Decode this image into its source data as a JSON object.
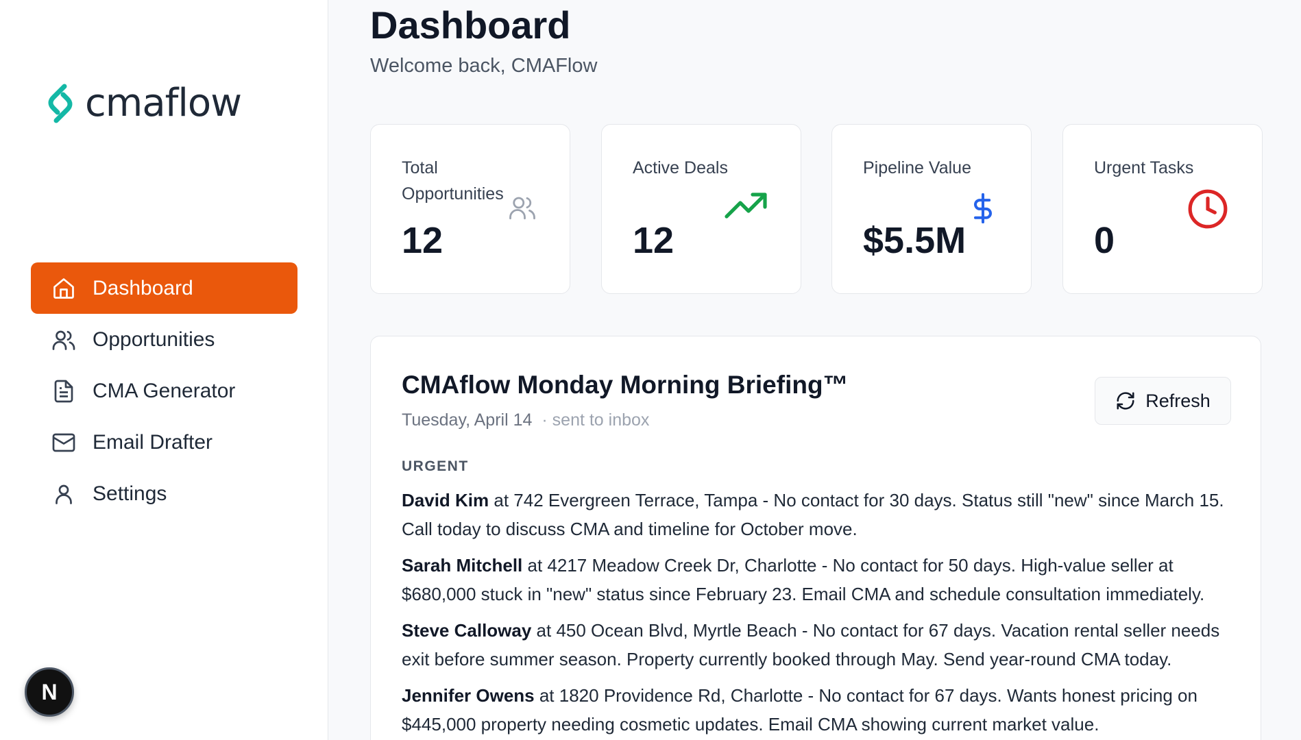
{
  "brand": {
    "name": "cmaflow",
    "color": "#14b8a6"
  },
  "sidebar": {
    "items": [
      {
        "label": "Dashboard",
        "icon": "home-icon",
        "active": true
      },
      {
        "label": "Opportunities",
        "icon": "users-icon",
        "active": false
      },
      {
        "label": "CMA Generator",
        "icon": "document-icon",
        "active": false
      },
      {
        "label": "Email Drafter",
        "icon": "mail-icon",
        "active": false
      },
      {
        "label": "Settings",
        "icon": "user-icon",
        "active": false
      }
    ],
    "badge": "N",
    "accent": "#ea580c"
  },
  "header": {
    "title": "Dashboard",
    "subtitle": "Welcome back, CMAFlow"
  },
  "stats": [
    {
      "label": "Total Opportunities",
      "value": "12",
      "icon": "users-icon",
      "color": "#9ca3af"
    },
    {
      "label": "Active Deals",
      "value": "12",
      "icon": "trending-up-icon",
      "color": "#16a34a"
    },
    {
      "label": "Pipeline Value",
      "value": "$5.5M",
      "icon": "dollar-icon",
      "color": "#2563eb"
    },
    {
      "label": "Urgent Tasks",
      "value": "0",
      "icon": "clock-icon",
      "color": "#dc2626"
    }
  ],
  "briefing": {
    "title": "CMAflow Monday Morning Briefing™",
    "date": "Tuesday, April 14",
    "status": "· sent to inbox",
    "refresh_label": "Refresh",
    "section": "URGENT",
    "items": [
      {
        "name": "David Kim",
        "text": " at 742 Evergreen Terrace, Tampa - No contact for 30 days. Status still \"new\" since March 15. Call today to discuss CMA and timeline for October move."
      },
      {
        "name": "Sarah Mitchell",
        "text": " at 4217 Meadow Creek Dr, Charlotte - No contact for 50 days. High-value seller at $680,000 stuck in \"new\" status since February 23. Email CMA and schedule consultation immediately."
      },
      {
        "name": "Steve Calloway",
        "text": " at 450 Ocean Blvd, Myrtle Beach - No contact for 67 days. Vacation rental seller needs exit before summer season. Property currently booked through May. Send year-round CMA today."
      },
      {
        "name": "Jennifer Owens",
        "text": " at 1820 Providence Rd, Charlotte - No contact for 67 days. Wants honest pricing on $445,000 property needing cosmetic updates. Email CMA showing current market value."
      }
    ]
  }
}
